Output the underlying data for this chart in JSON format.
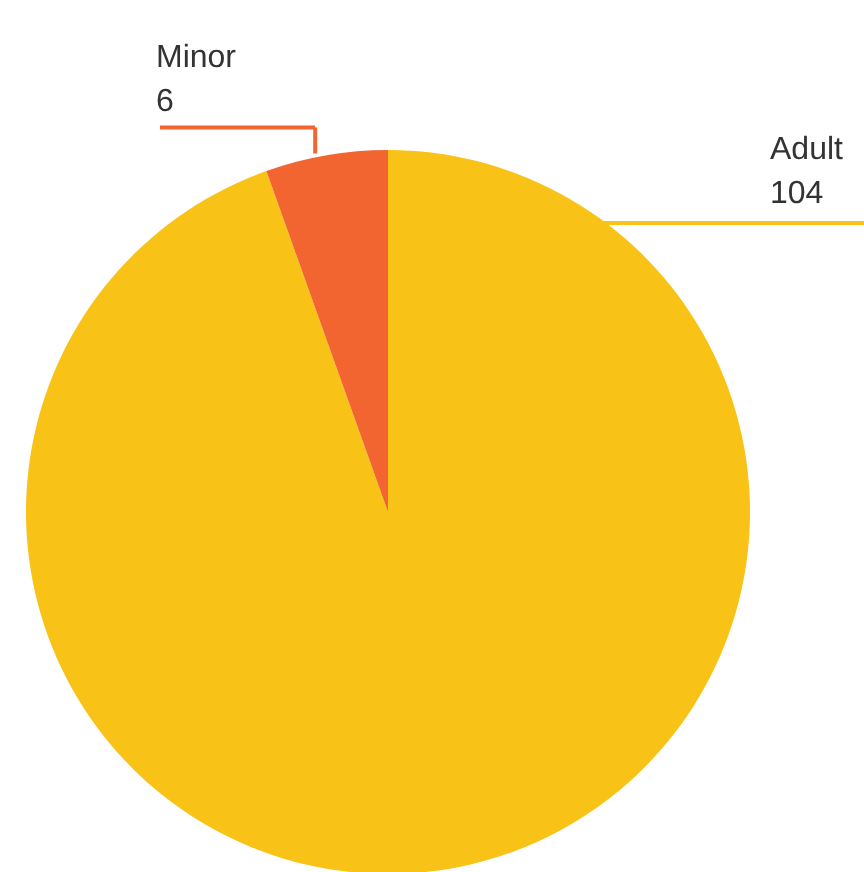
{
  "chart_data": {
    "type": "pie",
    "categories": [
      "Adult",
      "Minor"
    ],
    "values": [
      104,
      6
    ],
    "colors": [
      "#f9c217",
      "#f26531"
    ],
    "data_labels": true
  }
}
